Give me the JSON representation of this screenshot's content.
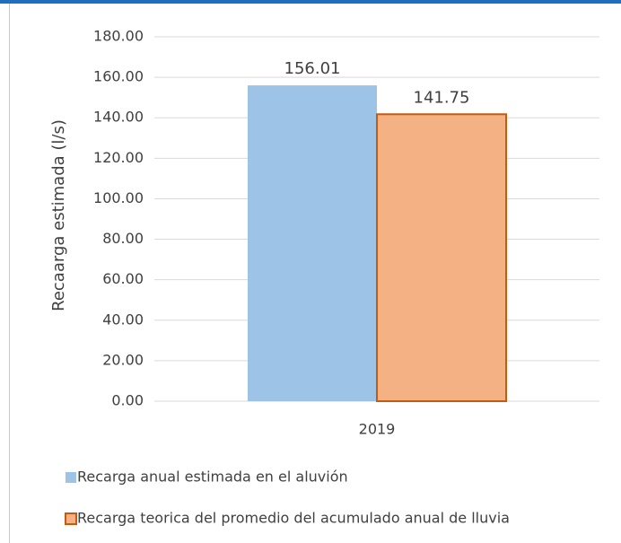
{
  "chart_data": {
    "type": "bar",
    "ylabel": "Recaarga estimada (l/s)",
    "categories": [
      "2019"
    ],
    "series": [
      {
        "name": "Recarga anual estimada en el aluvión",
        "color": "#9dc3e6",
        "values": [
          156.01
        ]
      },
      {
        "name": "Recarga teorica del promedio del acumulado anual de lluvia",
        "color": "#f4b183",
        "edgecolor": "#c55a11",
        "values": [
          141.75
        ]
      }
    ],
    "ylim": [
      0,
      180
    ],
    "yticks": [
      {
        "value": 0,
        "label": "0.00"
      },
      {
        "value": 20,
        "label": "20.00"
      },
      {
        "value": 40,
        "label": "40.00"
      },
      {
        "value": 60,
        "label": "60.00"
      },
      {
        "value": 80,
        "label": "80.00"
      },
      {
        "value": 100,
        "label": "100.00"
      },
      {
        "value": 120,
        "label": "120.00"
      },
      {
        "value": 140,
        "label": "140.00"
      },
      {
        "value": 160,
        "label": "160.00"
      },
      {
        "value": 180,
        "label": "180.00"
      }
    ],
    "grid": true,
    "legend": "bottom"
  }
}
